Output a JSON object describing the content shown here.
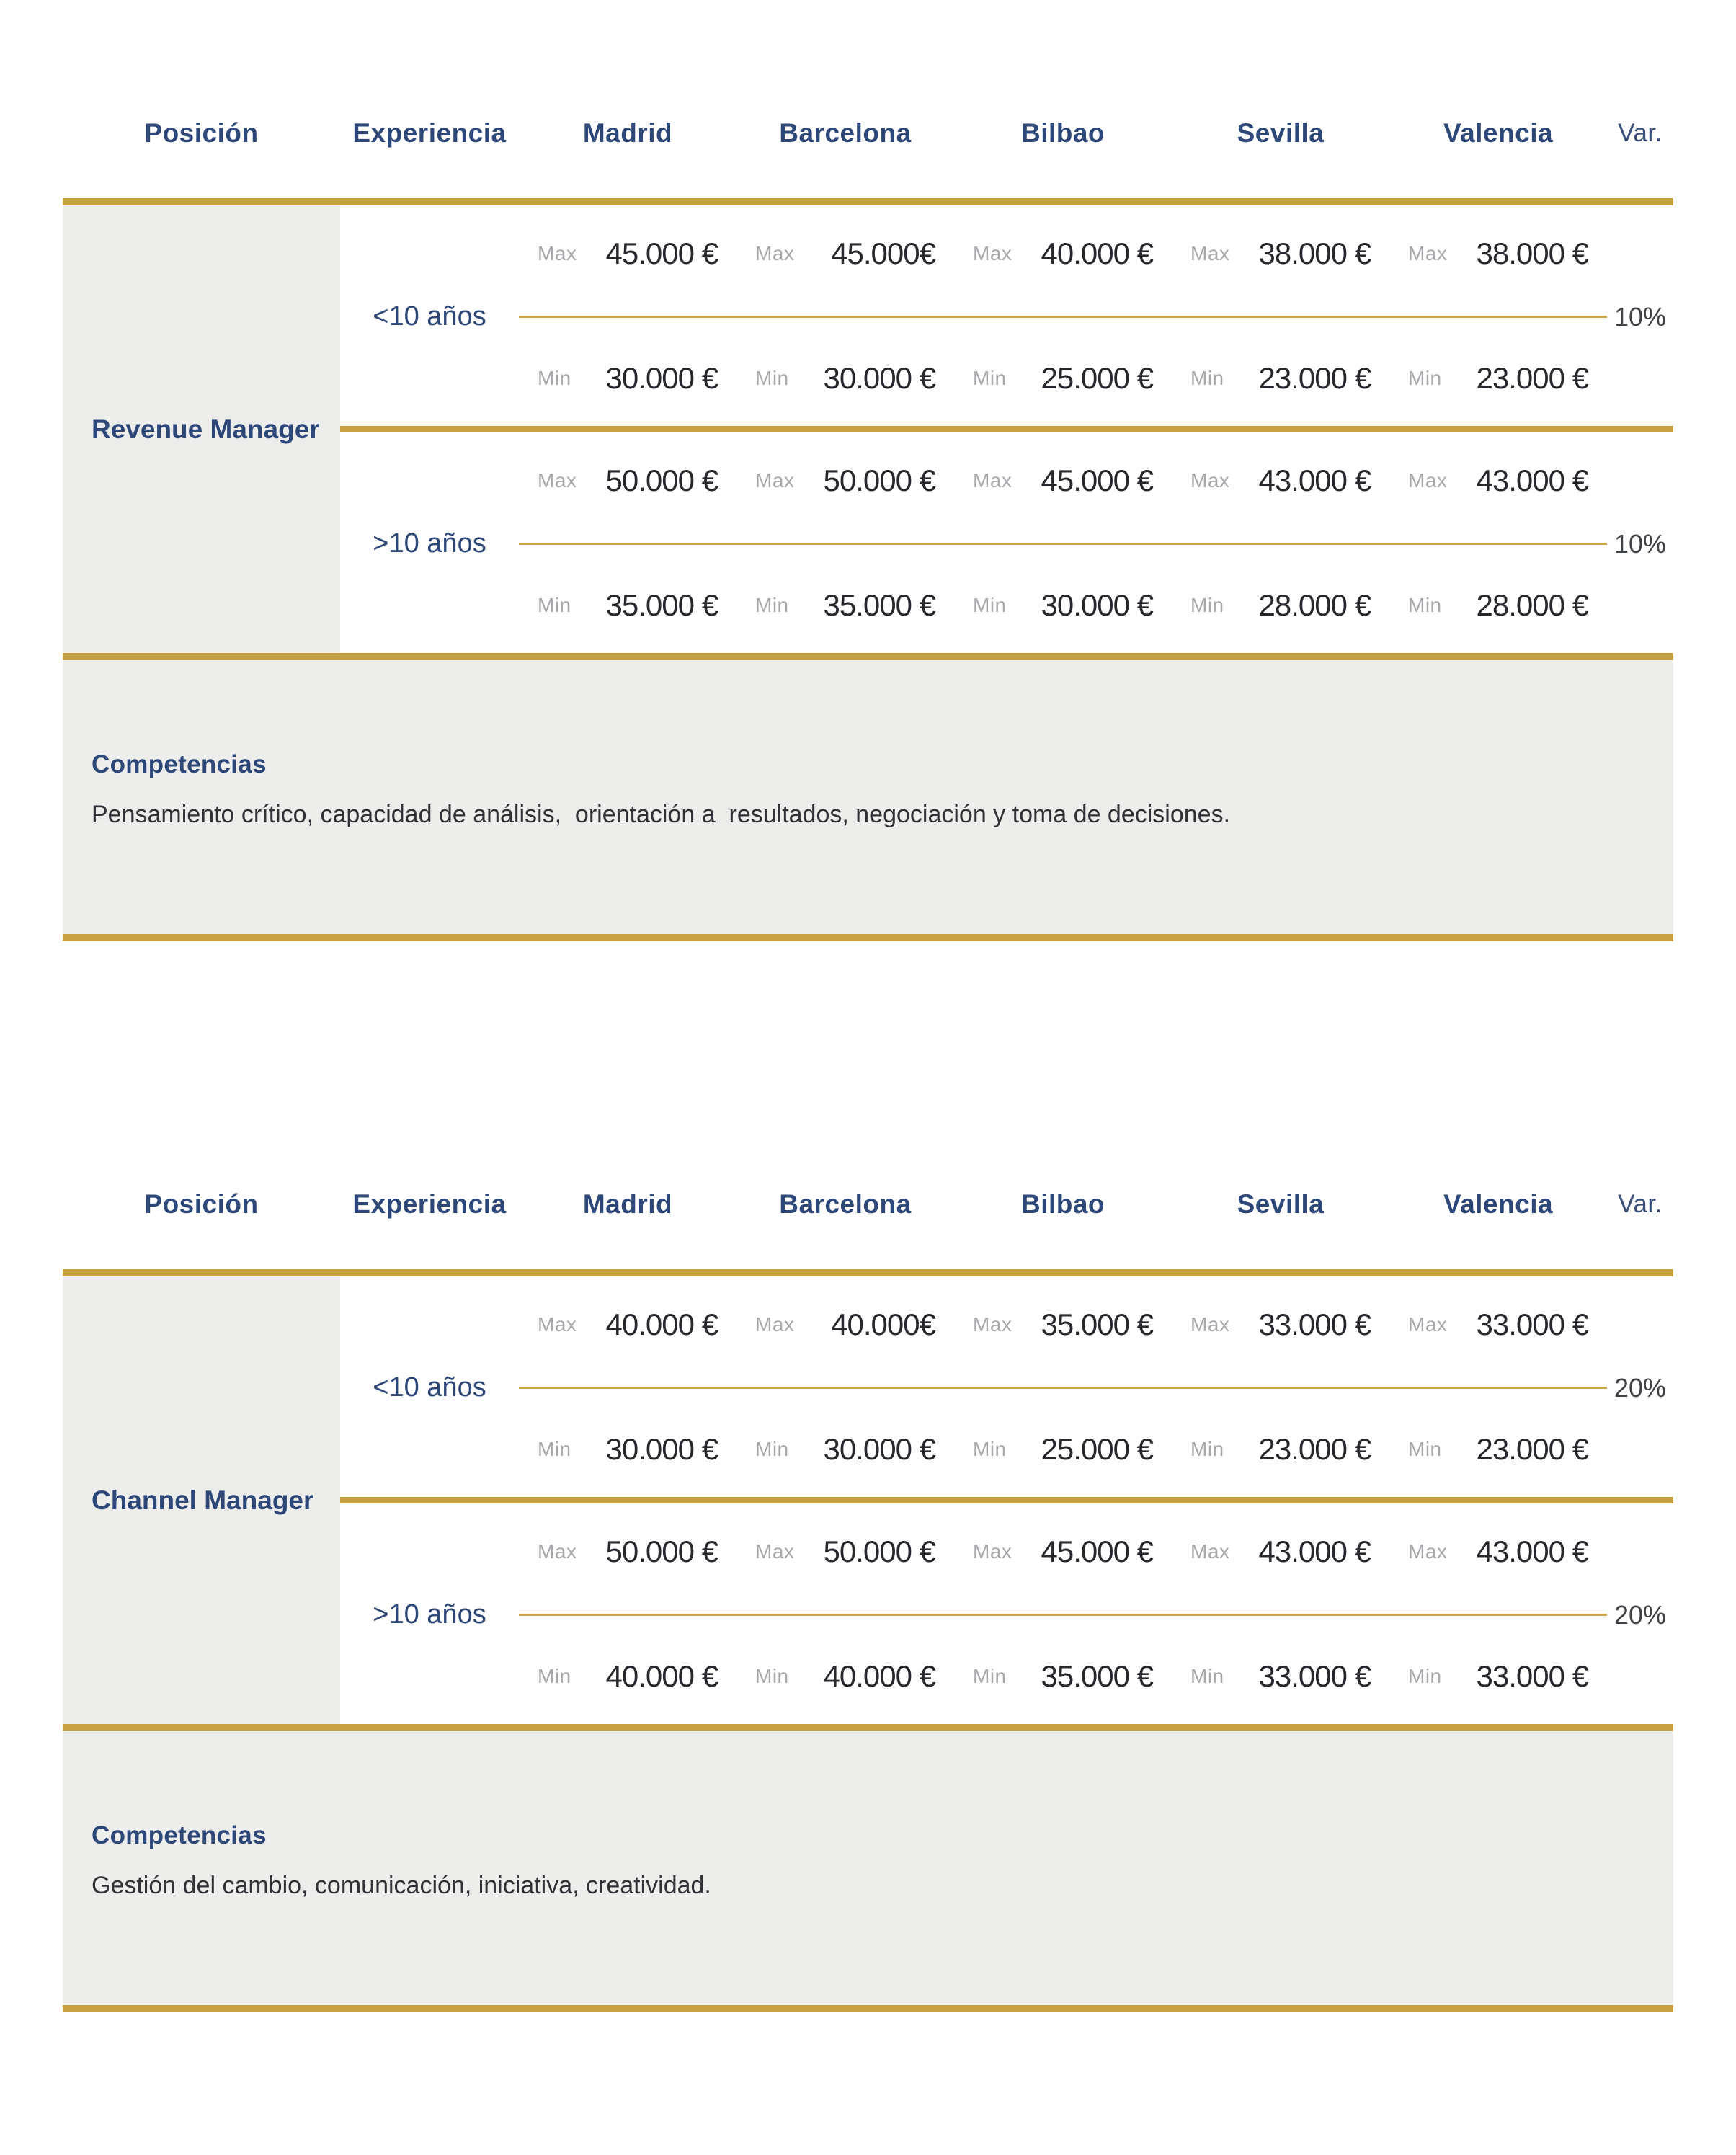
{
  "colors": {
    "navy": "#2c4778",
    "gold": "#c6a041",
    "gold_thin": "#c9a54b",
    "gray_block": "#ededec",
    "minmax_label_gray": "#a6a8ab",
    "value_dark": "#26282d",
    "background": "#ffffff"
  },
  "columns": {
    "position": "Posición",
    "experience": "Experiencia",
    "cities": [
      "Madrid",
      "Barcelona",
      "Bilbao",
      "Sevilla",
      "Valencia"
    ],
    "variation": "Var."
  },
  "labels": {
    "max": "Max",
    "min": "Min"
  },
  "tables": [
    {
      "position": "Revenue Manager",
      "competencias_title": "Competencias",
      "competencias_text": "Pensamiento crítico, capacidad de análisis,  orientación a  resultados, negociación y toma de decisiones.",
      "groups": [
        {
          "experience": "<10 años",
          "variation": "10%",
          "max": [
            "45.000 €",
            "45.000€",
            "40.000 €",
            "38.000 €",
            "38.000 €"
          ],
          "min": [
            "30.000 €",
            "30.000 €",
            "25.000 €",
            "23.000 €",
            "23.000 €"
          ]
        },
        {
          "experience": ">10 años",
          "variation": "10%",
          "max": [
            "50.000 €",
            "50.000 €",
            "45.000 €",
            "43.000 €",
            "43.000 €"
          ],
          "min": [
            "35.000 €",
            "35.000 €",
            "30.000 €",
            "28.000 €",
            "28.000 €"
          ]
        }
      ]
    },
    {
      "position": "Channel Manager",
      "competencias_title": "Competencias",
      "competencias_text": "Gestión del cambio, comunicación, iniciativa, creatividad.",
      "groups": [
        {
          "experience": "<10 años",
          "variation": "20%",
          "max": [
            "40.000 €",
            "40.000€",
            "35.000 €",
            "33.000 €",
            "33.000 €"
          ],
          "min": [
            "30.000 €",
            "30.000 €",
            "25.000 €",
            "23.000 €",
            "23.000 €"
          ]
        },
        {
          "experience": ">10 años",
          "variation": "20%",
          "max": [
            "50.000 €",
            "50.000 €",
            "45.000 €",
            "43.000 €",
            "43.000 €"
          ],
          "min": [
            "40.000 €",
            "40.000 €",
            "35.000 €",
            "33.000 €",
            "33.000 €"
          ]
        }
      ]
    }
  ]
}
